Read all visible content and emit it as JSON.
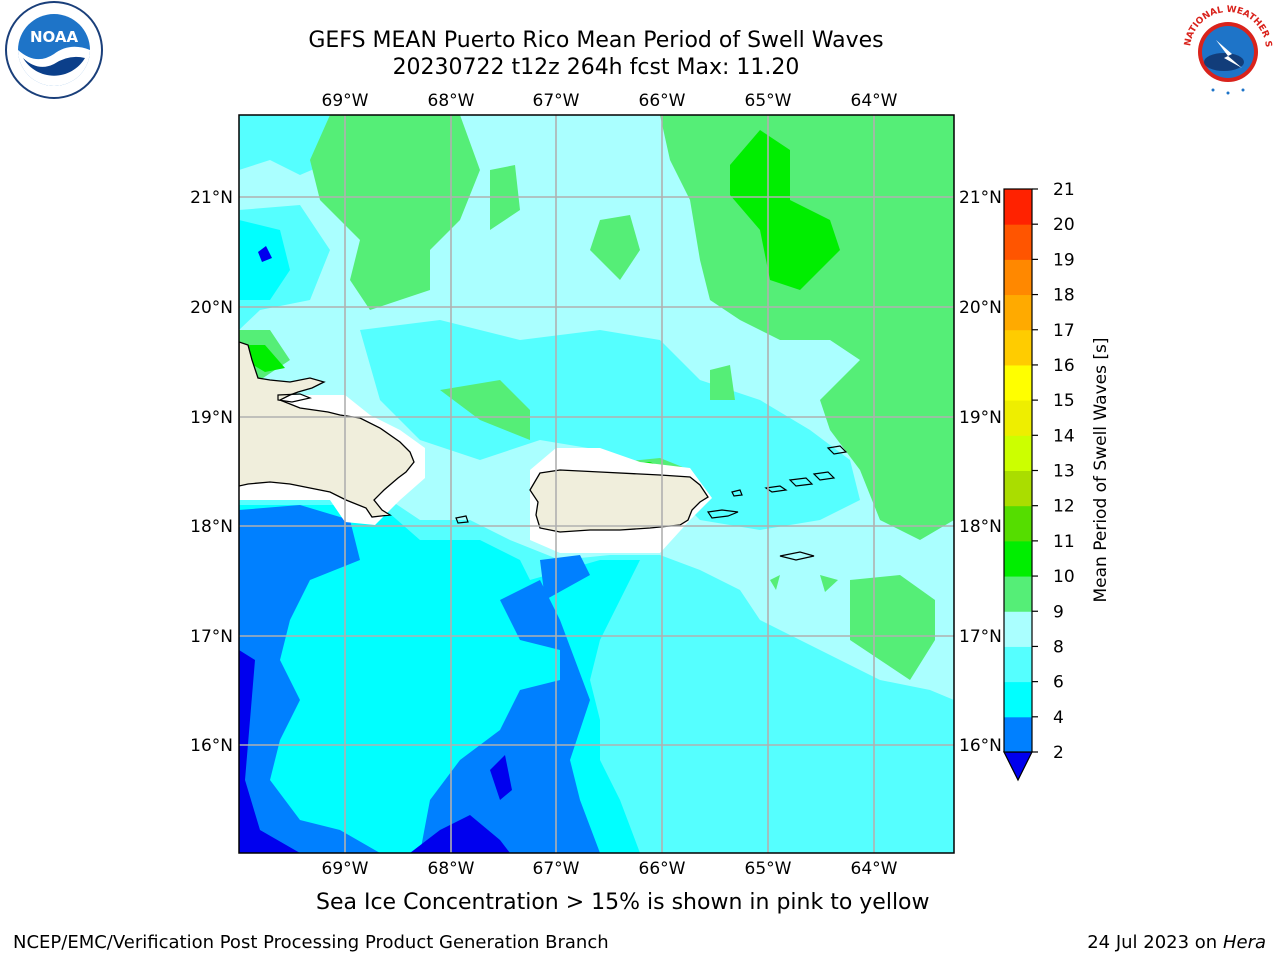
{
  "title_line1": "GEFS MEAN Puerto Rico Mean Period of Swell Waves",
  "title_line2": "20230722 t12z 264h fcst   Max: 11.20",
  "logos": {
    "left": "NOAA",
    "right": "NATIONAL WEATHER SERVICE"
  },
  "lon_labels": [
    "69°W",
    "68°W",
    "67°W",
    "66°W",
    "65°W",
    "64°W"
  ],
  "lat_labels": [
    "21°N",
    "20°N",
    "19°N",
    "18°N",
    "17°N",
    "16°N"
  ],
  "colorbar": {
    "label": "Mean Period of Swell Waves [s]",
    "ticks": [
      "2",
      "4",
      "6",
      "8",
      "9",
      "10",
      "11",
      "12",
      "13",
      "14",
      "15",
      "16",
      "17",
      "18",
      "19",
      "20",
      "21"
    ],
    "colors": [
      "#0000ee",
      "#0080ff",
      "#00ffff",
      "#55ffff",
      "#aaffff",
      "#55ee77",
      "#00ee00",
      "#55dd00",
      "#aadd00",
      "#ccff00",
      "#eeee00",
      "#ffff00",
      "#ffcc00",
      "#ffaa00",
      "#ff8800",
      "#ff5500",
      "#ff2200",
      "#ff0000"
    ],
    "extend": "min"
  },
  "map_colors": {
    "land": "#f0eedc",
    "coast": "#000000",
    "grid": "#b0b0b0",
    "c_2_4": "#0000ee",
    "c_4_6": "#0080ff",
    "c_6_7": "#00ffff",
    "c_7_8": "#55ffff",
    "c_8_9": "#aaffff",
    "c_9_10": "#55ee77",
    "c_10_11": "#00ee00"
  },
  "footer_note": "Sea Ice Concentration > 15% is shown in pink to yellow",
  "credit": "NCEP/EMC/Verification Post Processing Product Generation Branch",
  "date_prefix": "24 Jul 2023 on ",
  "date_host": "Hera"
}
